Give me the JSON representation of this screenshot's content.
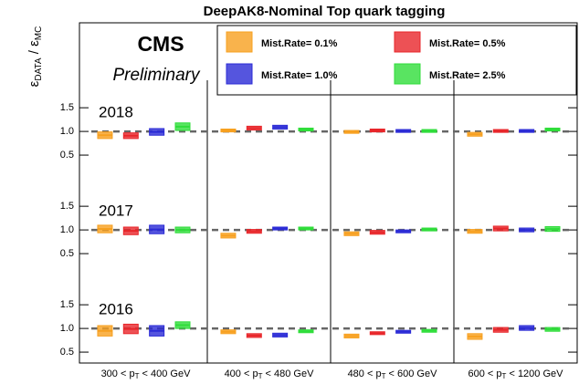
{
  "chart_data": {
    "type": "errorbar",
    "title": "DeepAK8-Nominal Top quark tagging",
    "experiment": "CMS",
    "status": "Preliminary",
    "ylabel": [
      "ε",
      "DATA",
      " / ε",
      "MC"
    ],
    "categories": [
      {
        "pre": "300 < p",
        "sub": "T",
        "post": " < 400 GeV"
      },
      {
        "pre": "400 < p",
        "sub": "T",
        "post": " < 480 GeV"
      },
      {
        "pre": "480 < p",
        "sub": "T",
        "post": " < 600 GeV"
      },
      {
        "pre": "600 < p",
        "sub": "T",
        "post": " < 1200 GeV"
      }
    ],
    "series": [
      {
        "name": "Mist.Rate= 0.1%",
        "color": "#f7a01f"
      },
      {
        "name": "Mist.Rate= 0.5%",
        "color": "#e8262a"
      },
      {
        "name": "Mist.Rate= 1.0%",
        "color": "#2b2bd6"
      },
      {
        "name": "Mist.Rate= 2.5%",
        "color": "#2fdd3a"
      }
    ],
    "reference_line": 1,
    "panels": [
      {
        "label": "2018",
        "ylim": [
          0.27,
          2.35
        ],
        "yticks": [
          {
            "value": 0.5,
            "label": "0.5"
          },
          {
            "value": 1,
            "label": "1.0"
          },
          {
            "value": 1.5,
            "label": "1.5"
          }
        ],
        "values": [
          [
            0.92,
            1.02,
            0.99,
            0.94
          ],
          [
            0.91,
            1.07,
            1.02,
            1.01
          ],
          [
            0.99,
            1.09,
            1.01,
            1.01
          ],
          [
            1.1,
            1.04,
            1.01,
            1.04
          ]
        ],
        "errors": [
          [
            0.07,
            0.03,
            0.03,
            0.04
          ],
          [
            0.06,
            0.04,
            0.03,
            0.03
          ],
          [
            0.07,
            0.04,
            0.03,
            0.03
          ],
          [
            0.08,
            0.03,
            0.03,
            0.03
          ]
        ]
      },
      {
        "label": "2017",
        "ylim": [
          0.27,
          2.35
        ],
        "yticks": [
          {
            "value": 0.5,
            "label": "0.5"
          },
          {
            "value": 1,
            "label": "1.0"
          },
          {
            "value": 1.5,
            "label": "1.5"
          }
        ],
        "values": [
          [
            1.02,
            0.88,
            0.92,
            0.97
          ],
          [
            0.98,
            0.97,
            0.95,
            1.03
          ],
          [
            1.01,
            1.03,
            0.97,
            1.0
          ],
          [
            1.0,
            1.03,
            1.01,
            1.02
          ]
        ],
        "errors": [
          [
            0.08,
            0.05,
            0.04,
            0.04
          ],
          [
            0.08,
            0.04,
            0.04,
            0.05
          ],
          [
            0.09,
            0.03,
            0.03,
            0.04
          ],
          [
            0.06,
            0.03,
            0.03,
            0.05
          ]
        ]
      },
      {
        "label": "2016",
        "ylim": [
          0.27,
          2.35
        ],
        "yticks": [
          {
            "value": 0.5,
            "label": "0.5"
          },
          {
            "value": 1,
            "label": "1.0"
          },
          {
            "value": 1.5,
            "label": "1.5"
          }
        ],
        "values": [
          [
            0.95,
            0.93,
            0.84,
            0.83
          ],
          [
            0.99,
            0.85,
            0.9,
            0.97
          ],
          [
            0.95,
            0.86,
            0.93,
            1.01
          ],
          [
            1.07,
            0.94,
            0.95,
            0.98
          ]
        ],
        "errors": [
          [
            0.11,
            0.04,
            0.04,
            0.06
          ],
          [
            0.1,
            0.04,
            0.03,
            0.05
          ],
          [
            0.11,
            0.04,
            0.03,
            0.05
          ],
          [
            0.07,
            0.03,
            0.03,
            0.04
          ]
        ]
      }
    ]
  }
}
